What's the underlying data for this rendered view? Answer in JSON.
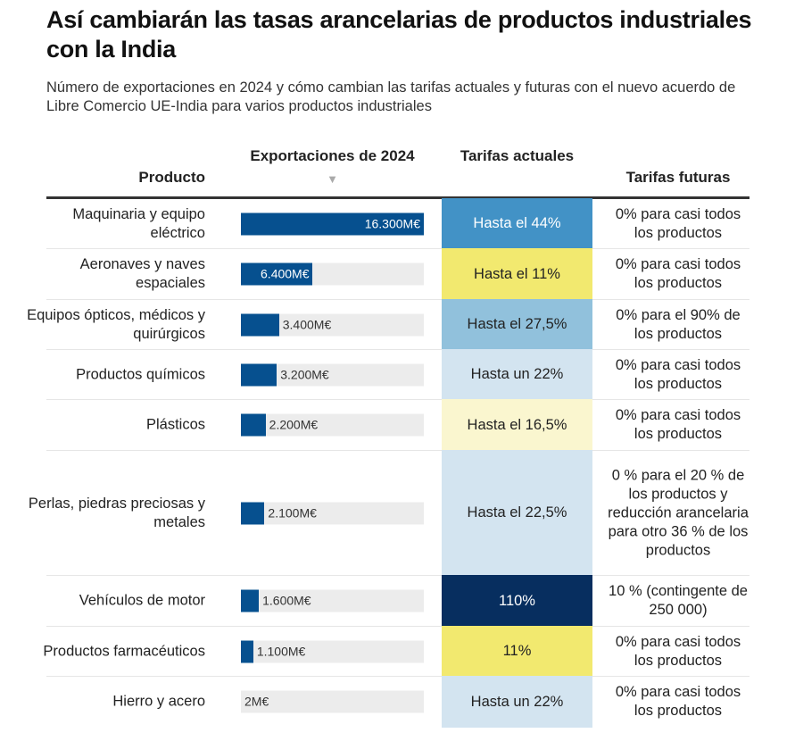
{
  "title": "Así cambiarán las tasas arancelarias de productos industriales con la India",
  "subtitle": "Número de exportaciones en 2024 y cómo cambian las tarifas actuales y futuras con el nuevo acuerdo de Libre Comercio UE-India para varios productos industriales",
  "headers": {
    "product": "Producto",
    "exports": "Exportaciones de 2024",
    "sort_arrow": "▼",
    "current": "Tarifas actuales",
    "future": "Tarifas futuras"
  },
  "colors": {
    "bar": "#06508f",
    "track": "#ececec"
  },
  "chart_data": {
    "type": "table",
    "columns": [
      "Producto",
      "Exportaciones de 2024",
      "Tarifas actuales",
      "Tarifas futuras"
    ],
    "bar_max": 16300,
    "rows": [
      {
        "product": "Maquinaria y equipo eléctrico",
        "value": 16300,
        "label": "16.300M€",
        "current": "Hasta el 44%",
        "current_color": "#4292c6",
        "future": "0% para casi todos los productos"
      },
      {
        "product": "Aeronaves y naves espaciales",
        "value": 6400,
        "label": "6.400M€",
        "current": "Hasta el 11%",
        "current_color": "#f2e96f",
        "future": "0% para casi todos los productos"
      },
      {
        "product": "Equipos ópticos, médicos y quirúrgicos",
        "value": 3400,
        "label": "3.400M€",
        "current": "Hasta el 27,5%",
        "current_color": "#91c1dc",
        "future": "0% para el 90% de los productos"
      },
      {
        "product": "Productos químicos",
        "value": 3200,
        "label": "3.200M€",
        "current": "Hasta un 22%",
        "current_color": "#d3e4f0",
        "future": "0% para casi todos los productos"
      },
      {
        "product": "Plásticos",
        "value": 2200,
        "label": "2.200M€",
        "current": "Hasta el 16,5%",
        "current_color": "#faf6cf",
        "future": "0% para casi todos los productos"
      },
      {
        "product": "Perlas, piedras preciosas y metales",
        "value": 2100,
        "label": "2.100M€",
        "current": "Hasta el 22,5%",
        "current_color": "#d3e4f0",
        "future": "0 % para el 20 % de los productos y reducción arancelaria para otro 36 % de los productos"
      },
      {
        "product": "Vehículos de motor",
        "value": 1600,
        "label": "1.600M€",
        "current": "110%",
        "current_color": "#072e5f",
        "future": "10 % (contingente de 250 000)"
      },
      {
        "product": "Productos farmacéuticos",
        "value": 1100,
        "label": "1.100M€",
        "current": "11%",
        "current_color": "#f2e96f",
        "future": "0% para casi todos los productos"
      },
      {
        "product": "Hierro y acero",
        "value": 2,
        "label": "2M€",
        "current": "Hasta un 22%",
        "current_color": "#d3e4f0",
        "future": "0% para casi todos los productos"
      }
    ]
  }
}
